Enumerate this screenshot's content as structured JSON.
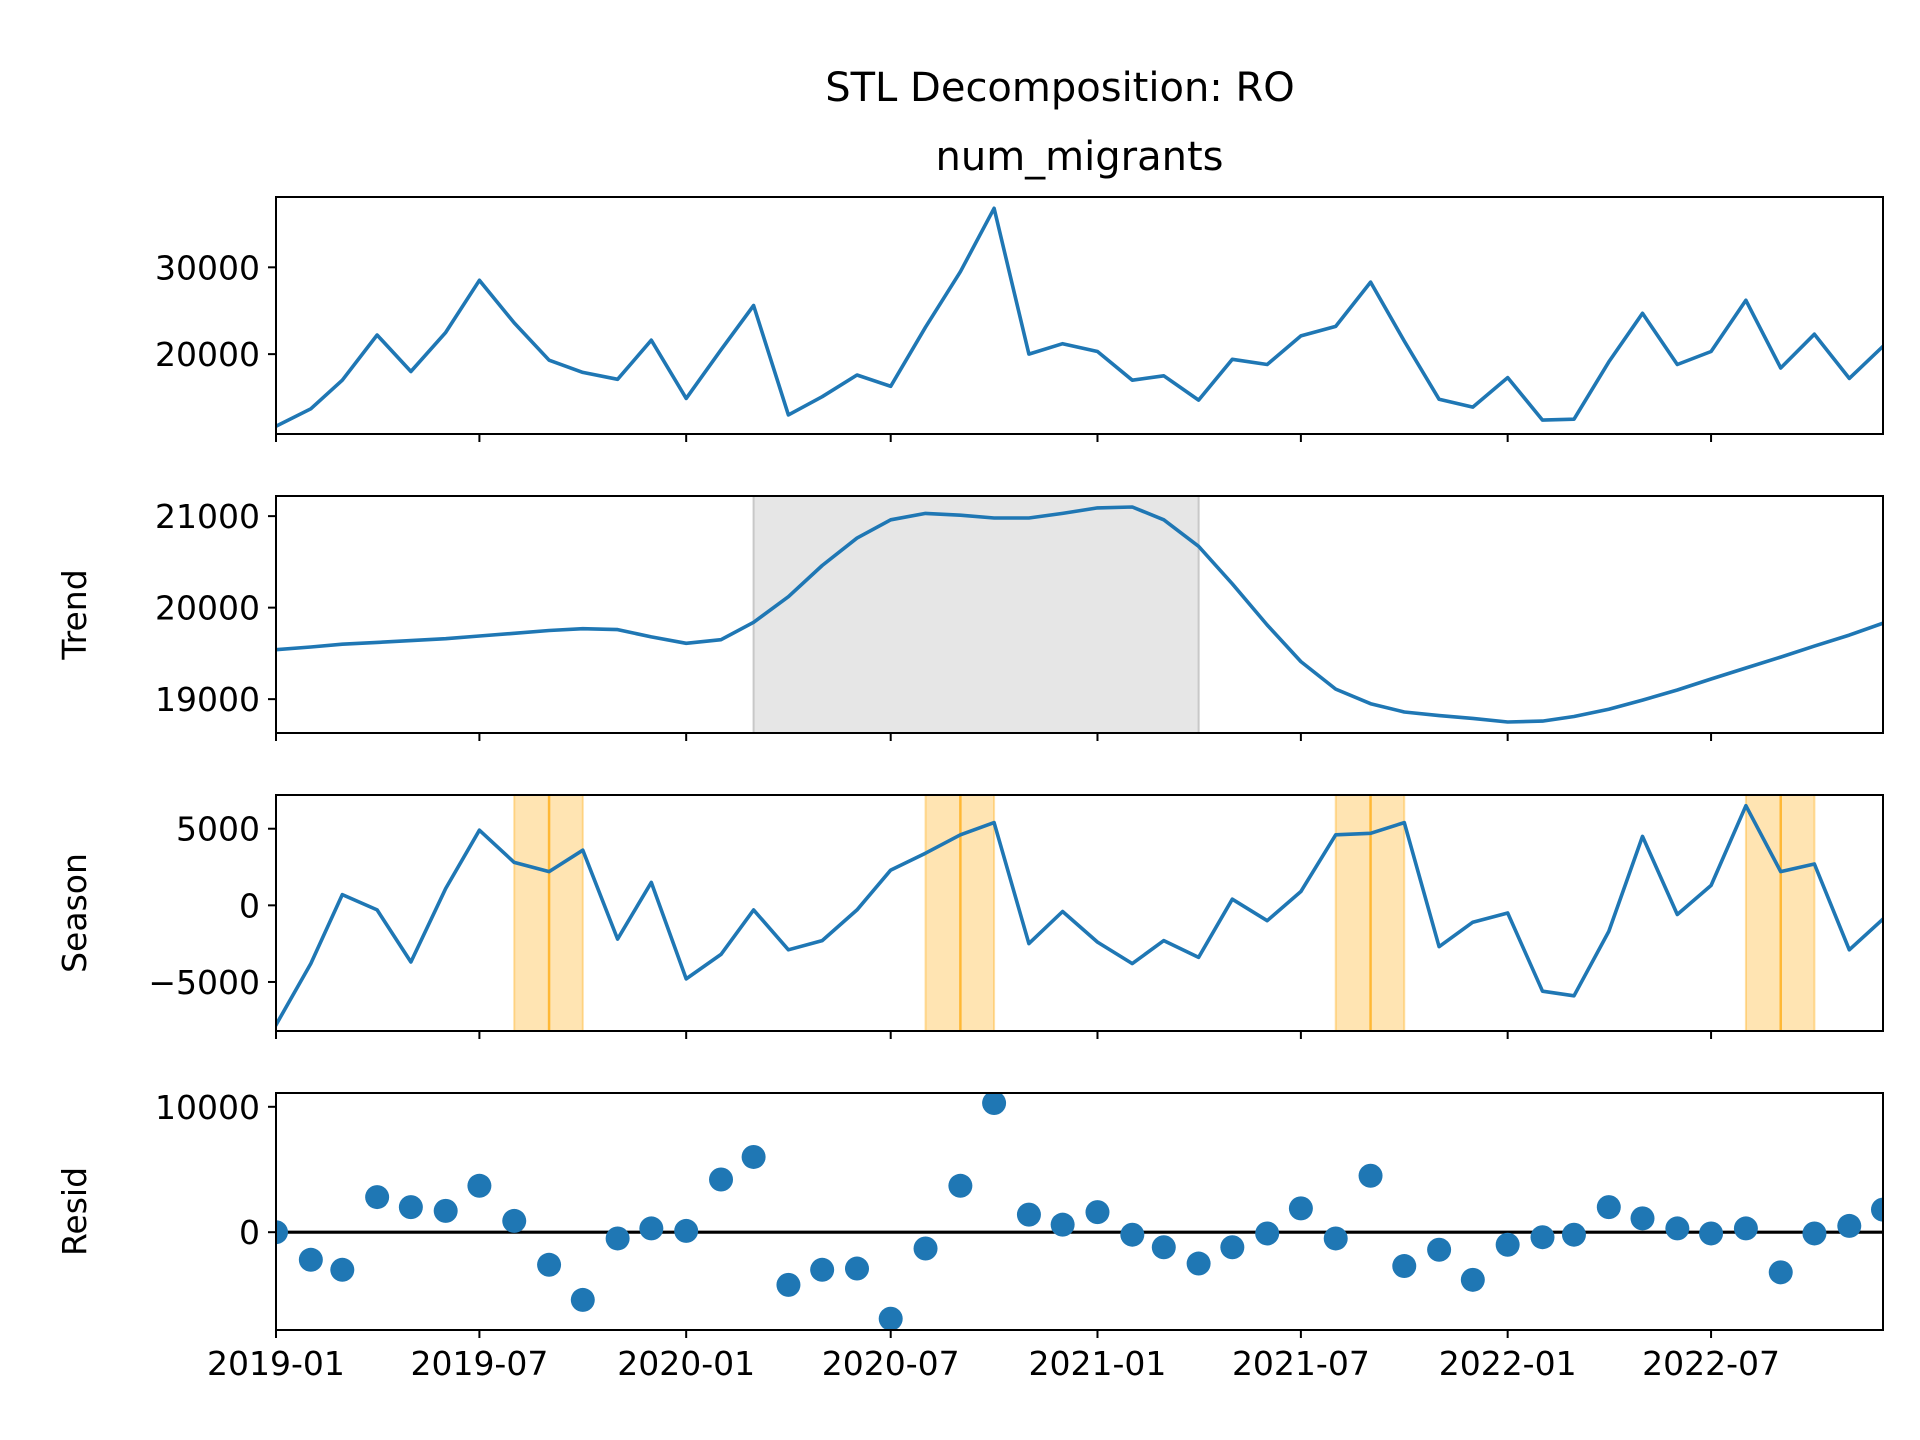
{
  "chart_data": {
    "type": "line",
    "suptitle": "STL Decomposition: RO",
    "shared_x": {
      "type": "date",
      "range": [
        "2019-01-01",
        "2022-12-01"
      ],
      "ticks": [
        "2019-01",
        "2019-07",
        "2020-01",
        "2020-07",
        "2021-01",
        "2021-07",
        "2022-01",
        "2022-07"
      ],
      "tick_dates": [
        "2019-01-01",
        "2019-07-01",
        "2020-01-01",
        "2020-07-01",
        "2021-01-01",
        "2021-07-01",
        "2022-01-01",
        "2022-07-01"
      ]
    },
    "dates": [
      "2019-01",
      "2019-02",
      "2019-03",
      "2019-04",
      "2019-05",
      "2019-06",
      "2019-07",
      "2019-08",
      "2019-09",
      "2019-10",
      "2019-11",
      "2019-12",
      "2020-01",
      "2020-02",
      "2020-03",
      "2020-04",
      "2020-05",
      "2020-06",
      "2020-07",
      "2020-08",
      "2020-09",
      "2020-10",
      "2020-11",
      "2020-12",
      "2021-01",
      "2021-02",
      "2021-03",
      "2021-04",
      "2021-05",
      "2021-06",
      "2021-07",
      "2021-08",
      "2021-09",
      "2021-10",
      "2021-11",
      "2021-12",
      "2022-01",
      "2022-02",
      "2022-03",
      "2022-04",
      "2022-05",
      "2022-06",
      "2022-07",
      "2022-08",
      "2022-09",
      "2022-10",
      "2022-11",
      "2022-12"
    ],
    "panels": [
      {
        "id": "observed",
        "title": "num_migrants",
        "ylabel": "",
        "kind": "line",
        "ylim": [
          10800,
          38100
        ],
        "yticks": [
          20000,
          30000
        ],
        "ytick_labels": [
          "20000",
          "30000"
        ],
        "values": [
          11700,
          13700,
          17000,
          22200,
          18000,
          22500,
          28500,
          23600,
          19300,
          17900,
          17100,
          21600,
          14900,
          20500,
          25600,
          13000,
          15100,
          17600,
          16300,
          23100,
          29500,
          36800,
          20000,
          21200,
          20300,
          17000,
          17500,
          14700,
          19400,
          18800,
          22100,
          23200,
          28300,
          21500,
          14800,
          13900,
          17300,
          12400,
          12500,
          19100,
          24700,
          18800,
          20300,
          26200,
          18400,
          22300,
          17200,
          20900
        ]
      },
      {
        "id": "trend",
        "title": "",
        "ylabel": "Trend",
        "kind": "line",
        "ylim": [
          18630,
          21220
        ],
        "yticks": [
          19000,
          20000,
          21000
        ],
        "ytick_labels": [
          "19000",
          "20000",
          "21000"
        ],
        "shaded_span": {
          "start": "2020-03",
          "end": "2021-04",
          "color": "#e6e6e6"
        },
        "values": [
          19540,
          19570,
          19600,
          19620,
          19640,
          19660,
          19690,
          19720,
          19750,
          19770,
          19760,
          19680,
          19610,
          19650,
          19840,
          20120,
          20460,
          20760,
          20960,
          21030,
          21010,
          20980,
          20980,
          21030,
          21090,
          21100,
          20960,
          20670,
          20260,
          19810,
          19410,
          19110,
          18950,
          18860,
          18820,
          18790,
          18750,
          18760,
          18810,
          18890,
          18990,
          19100,
          19220,
          19340,
          19460,
          19580,
          19700,
          19830
        ]
      },
      {
        "id": "season",
        "title": "",
        "ylabel": "Season",
        "kind": "line",
        "ylim": [
          -8200,
          7200
        ],
        "yticks": [
          -5000,
          0,
          5000
        ],
        "ytick_labels": [
          "−5000",
          "0",
          "5000"
        ],
        "highlight_spans": [
          {
            "start": "2019-08",
            "end": "2019-10",
            "center": "2019-09",
            "color": "#ffa500"
          },
          {
            "start": "2020-08",
            "end": "2020-10",
            "center": "2020-09",
            "color": "#ffa500"
          },
          {
            "start": "2021-08",
            "end": "2021-10",
            "center": "2021-09",
            "color": "#ffa500"
          },
          {
            "start": "2022-08",
            "end": "2022-10",
            "center": "2022-09",
            "color": "#ffa500"
          }
        ],
        "values": [
          -7800,
          -3800,
          700,
          -300,
          -3700,
          1100,
          4900,
          2800,
          2200,
          3600,
          -2200,
          1500,
          -4800,
          -3200,
          -300,
          -2900,
          -2300,
          -300,
          2300,
          3400,
          4600,
          5400,
          -2500,
          -400,
          -2400,
          -3800,
          -2300,
          -3400,
          400,
          -1000,
          900,
          4600,
          4700,
          5400,
          -2700,
          -1100,
          -500,
          -5600,
          -5900,
          -1700,
          4500,
          -600,
          1300,
          6500,
          2200,
          2700,
          -2900,
          -900
        ]
      },
      {
        "id": "resid",
        "title": "",
        "ylabel": "Resid",
        "kind": "scatter",
        "ylim": [
          -7800,
          11100
        ],
        "yticks": [
          0,
          10000
        ],
        "ytick_labels": [
          "0",
          "10000"
        ],
        "baseline": 0,
        "values": [
          0,
          -2200,
          -3000,
          2800,
          2000,
          1700,
          3700,
          900,
          -2600,
          -5400,
          -500,
          300,
          100,
          4200,
          6000,
          -4200,
          -3000,
          -2900,
          -6900,
          -1300,
          3700,
          10300,
          1400,
          600,
          1600,
          -200,
          -1200,
          -2500,
          -1200,
          -100,
          1900,
          -500,
          4500,
          -2700,
          -1400,
          -3800,
          -1000,
          -400,
          -200,
          2000,
          1100,
          300,
          -100,
          300,
          -3200,
          -100,
          500,
          1800
        ]
      }
    ],
    "colors": {
      "line": "#1f77b4",
      "marker": "#1f77b4",
      "baseline": "#000000",
      "gray_span": "#e6e6e6",
      "orange_span": "#ffa500"
    }
  }
}
